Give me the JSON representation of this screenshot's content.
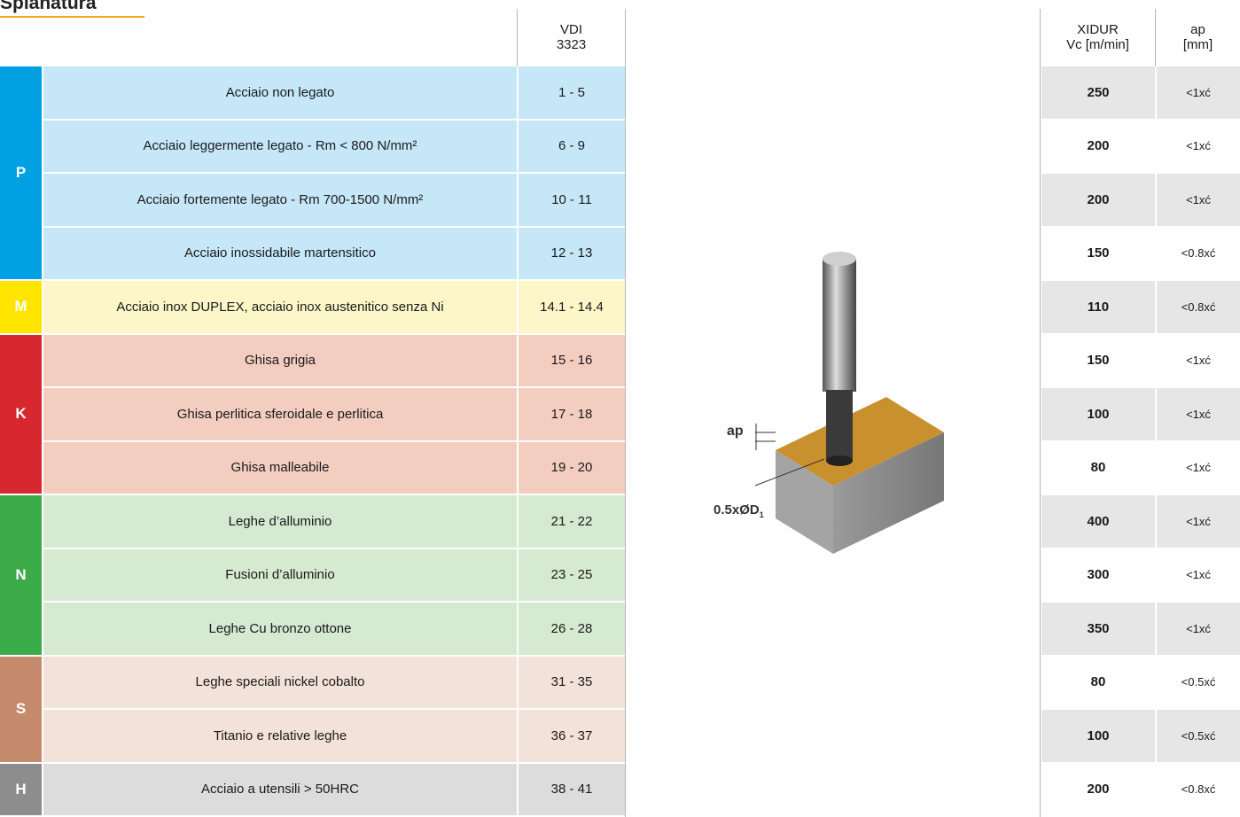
{
  "title": "Spianatura",
  "header": {
    "vdi": "VDI",
    "vdi_num": "3323",
    "xidur": "XIDUR",
    "vc": "Vc [m/min]",
    "ap": "ap",
    "ap_unit": "[mm]"
  },
  "figure": {
    "ap": "ap",
    "diameter": "0.5xØD",
    "diameter_sub": "1"
  },
  "groups": [
    {
      "letter": "P",
      "color": "#00a0e3",
      "bg": "#c6e7f7",
      "rows": [
        {
          "material": "Acciaio non legato",
          "vdi": "1 - 5",
          "vc": 250,
          "ap": "<1xć"
        },
        {
          "material": "Acciaio leggermente legato - Rm < 800 N/mm²",
          "vdi": "6 - 9",
          "vc": 200,
          "ap": "<1xć"
        },
        {
          "material": "Acciaio fortemente legato - Rm 700-1500  N/mm²",
          "vdi": "10 - 11",
          "vc": 200,
          "ap": "<1xć"
        },
        {
          "material": "Acciaio inossidabile martensitico",
          "vdi": "12 - 13",
          "vc": 150,
          "ap": "<0.8xć"
        }
      ]
    },
    {
      "letter": "M",
      "color": "#ffe500",
      "bg": "#fdf6c8",
      "rows": [
        {
          "material": "Acciaio inox DUPLEX, acciaio inox austenitico senza Ni",
          "vdi": "14.1 - 14.4",
          "vc": 110,
          "ap": "<0.8xć"
        }
      ]
    },
    {
      "letter": "K",
      "color": "#d7282f",
      "bg": "#f3cdc0",
      "rows": [
        {
          "material": "Ghisa grigia",
          "vdi": "15 - 16",
          "vc": 150,
          "ap": "<1xć"
        },
        {
          "material": "Ghisa perlitica sferoidale e perlitica",
          "vdi": "17 - 18",
          "vc": 100,
          "ap": "<1xć"
        },
        {
          "material": "Ghisa malleabile",
          "vdi": "19 - 20",
          "vc": 80,
          "ap": "<1xć"
        }
      ]
    },
    {
      "letter": "N",
      "color": "#3bab4a",
      "bg": "#d6e9d1",
      "rows": [
        {
          "material": "Leghe d’alluminio",
          "vdi": "21 - 22",
          "vc": 400,
          "ap": "<1xć"
        },
        {
          "material": "Fusioni d’alluminio",
          "vdi": "23 - 25",
          "vc": 300,
          "ap": "<1xć"
        },
        {
          "material": "Leghe Cu bronzo ottone",
          "vdi": "26 - 28",
          "vc": 350,
          "ap": "<1xć"
        }
      ]
    },
    {
      "letter": "S",
      "color": "#c68a6c",
      "bg": "#f2e2d9",
      "rows": [
        {
          "material": "Leghe speciali nickel cobalto",
          "vdi": "31 - 35",
          "vc": 80,
          "ap": "<0.5xć"
        },
        {
          "material": "Titanio e relative leghe",
          "vdi": "36 - 37",
          "vc": 100,
          "ap": "<0.5xć"
        }
      ]
    },
    {
      "letter": "H",
      "color": "#8d8d8d",
      "bg": "#dcdcdc",
      "rows": [
        {
          "material": "Acciaio a utensili > 50HRC",
          "vdi": "38 - 41",
          "vc": 200,
          "ap": "<0.8xć"
        }
      ]
    }
  ]
}
